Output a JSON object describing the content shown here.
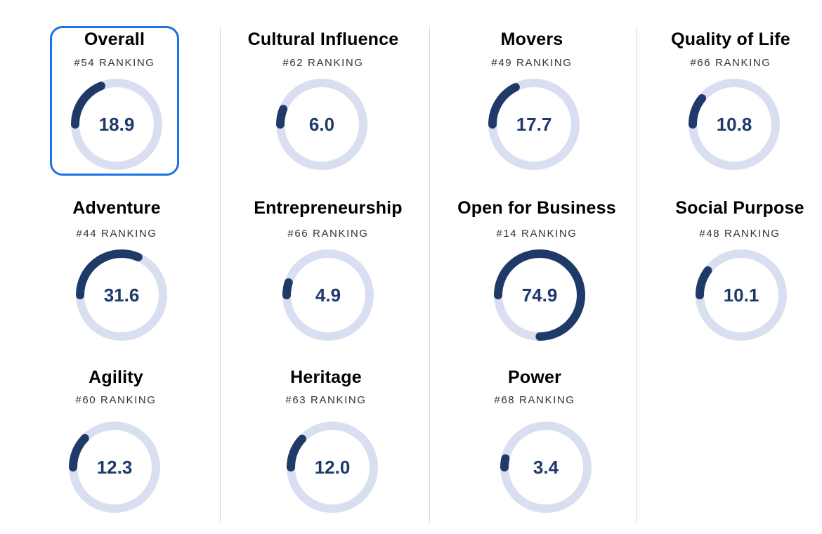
{
  "accent_color": "#1f3a68",
  "track_color": "#d9dff0",
  "selection_color": "#1a73e8",
  "selected_category": "Overall",
  "categories": [
    {
      "name": "Overall",
      "ranking": "#54 RANKING",
      "score": "18.9",
      "fraction": 0.189
    },
    {
      "name": "Cultural Influence",
      "ranking": "#62 RANKING",
      "score": "6.0",
      "fraction": 0.06
    },
    {
      "name": "Movers",
      "ranking": "#49 RANKING",
      "score": "17.7",
      "fraction": 0.177
    },
    {
      "name": "Quality of Life",
      "ranking": "#66 RANKING",
      "score": "10.8",
      "fraction": 0.108
    },
    {
      "name": "Adventure",
      "ranking": "#44 RANKING",
      "score": "31.6",
      "fraction": 0.316
    },
    {
      "name": "Entrepreneurship",
      "ranking": "#66 RANKING",
      "score": "4.9",
      "fraction": 0.049
    },
    {
      "name": "Open for Business",
      "ranking": "#14 RANKING",
      "score": "74.9",
      "fraction": 0.749
    },
    {
      "name": "Social Purpose",
      "ranking": "#48 RANKING",
      "score": "10.1",
      "fraction": 0.101
    },
    {
      "name": "Agility",
      "ranking": "#60 RANKING",
      "score": "12.3",
      "fraction": 0.123
    },
    {
      "name": "Heritage",
      "ranking": "#63 RANKING",
      "score": "12.0",
      "fraction": 0.12
    },
    {
      "name": "Power",
      "ranking": "#68 RANKING",
      "score": "3.4",
      "fraction": 0.034
    }
  ]
}
